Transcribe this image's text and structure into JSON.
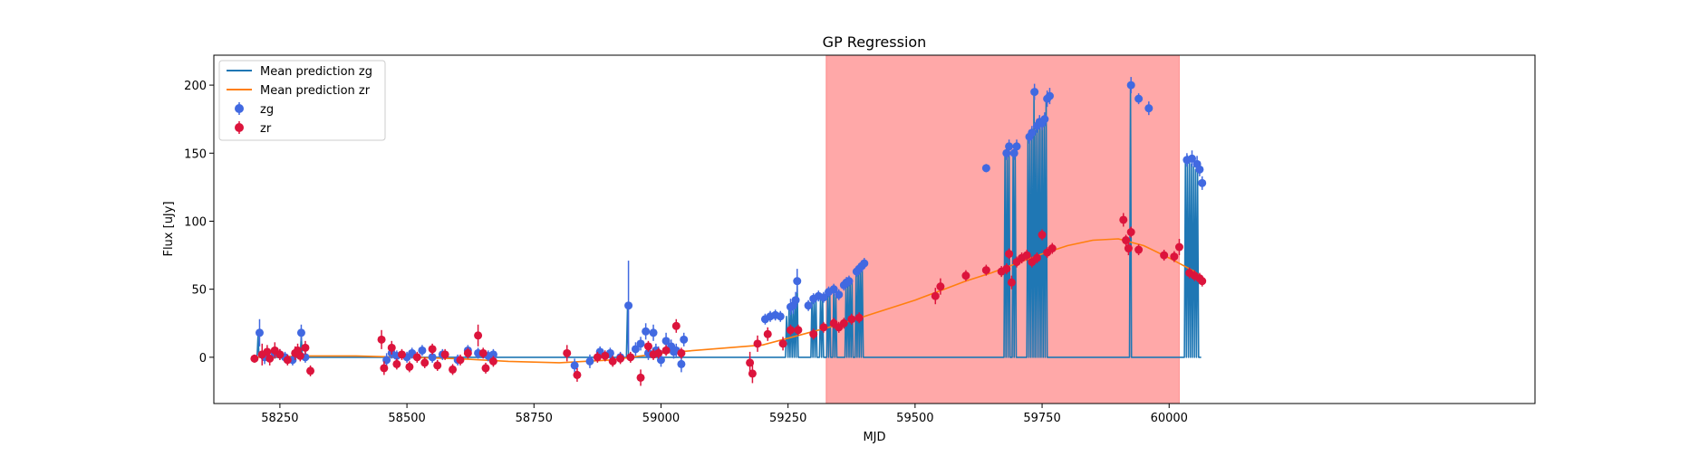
{
  "chart_data": {
    "type": "scatter",
    "title": "GP Regression",
    "xlabel": "MJD",
    "ylabel": "Flux [uJy]",
    "xlim": [
      58120,
      60720
    ],
    "ylim": [
      -34,
      222
    ],
    "xticks": [
      58250,
      58500,
      58750,
      59000,
      59250,
      59500,
      59750,
      60000
    ],
    "yticks": [
      0,
      50,
      100,
      150,
      200
    ],
    "grid": false,
    "legend_position": "top-left",
    "highlight_span": {
      "x0": 59325,
      "x1": 60020,
      "color": "#ff0000",
      "alpha": 0.34
    },
    "series": [
      {
        "name": "Mean prediction zg",
        "kind": "line",
        "color": "#1f77b4",
        "x": [
          58205,
          58207,
          58209,
          58211,
          58213,
          58230,
          58240,
          58260,
          58290,
          58292,
          58294,
          58296,
          58298,
          58320,
          58450,
          58600,
          58800,
          58932,
          58934,
          58936,
          58938,
          58940,
          59100,
          59245,
          59247,
          59250,
          59252,
          59254,
          59256,
          59258,
          59260,
          59262,
          59264,
          59266,
          59268,
          59270,
          59275,
          59280,
          59290,
          59295,
          59297,
          59299,
          59301,
          59303,
          59305,
          59307,
          59312,
          59314,
          59316,
          59318,
          59320,
          59326,
          59328,
          59330,
          59332,
          59334,
          59338,
          59340,
          59342,
          59344,
          59346,
          59350,
          59362,
          59364,
          59366,
          59368,
          59370,
          59372,
          59374,
          59376,
          59378,
          59380,
          59382,
          59384,
          59386,
          59388,
          59390,
          59392,
          59394,
          59396,
          59398,
          59400,
          59675,
          59677,
          59679,
          59681,
          59683,
          59685,
          59687,
          59689,
          59691,
          59693,
          59695,
          59697,
          59699,
          59720,
          59722,
          59724,
          59726,
          59728,
          59730,
          59732,
          59734,
          59736,
          59738,
          59740,
          59742,
          59744,
          59746,
          59748,
          59750,
          59752,
          59754,
          59756,
          59758,
          59760,
          59922,
          59924,
          59926,
          59928,
          59930,
          60030,
          60032,
          60034,
          60036,
          60038,
          60040,
          60042,
          60044,
          60046,
          60048,
          60050,
          60052,
          60054,
          60056,
          60058,
          60060,
          60063
        ],
        "y": [
          0,
          16,
          0,
          0,
          0,
          0,
          0,
          0,
          0,
          16,
          0,
          0,
          0,
          0,
          0,
          0,
          0,
          0,
          36,
          0,
          0,
          0,
          0,
          0,
          30,
          0,
          36,
          0,
          38,
          0,
          40,
          0,
          42,
          0,
          54,
          0,
          0,
          0,
          0,
          0,
          44,
          0,
          42,
          0,
          44,
          0,
          0,
          46,
          0,
          46,
          0,
          0,
          48,
          0,
          50,
          0,
          0,
          50,
          0,
          48,
          0,
          0,
          0,
          52,
          0,
          54,
          0,
          56,
          0,
          56,
          0,
          0,
          0,
          62,
          0,
          66,
          0,
          68,
          0,
          70,
          0,
          0,
          0,
          148,
          0,
          152,
          0,
          156,
          0,
          0,
          0,
          152,
          0,
          156,
          0,
          0,
          162,
          0,
          165,
          0,
          168,
          0,
          192,
          0,
          172,
          0,
          175,
          0,
          172,
          0,
          175,
          0,
          170,
          0,
          192,
          0,
          0,
          200,
          0,
          0,
          0,
          0,
          145,
          0,
          148,
          0,
          144,
          0,
          142,
          0,
          140,
          0,
          138,
          0,
          138,
          0,
          0,
          0
        ]
      },
      {
        "name": "Mean prediction zr",
        "kind": "line",
        "color": "#ff7f0e",
        "x": [
          58200,
          58300,
          58400,
          58500,
          58600,
          58700,
          58800,
          58900,
          59000,
          59100,
          59200,
          59250,
          59300,
          59350,
          59400,
          59450,
          59500,
          59550,
          59600,
          59650,
          59700,
          59750,
          59800,
          59850,
          59900,
          59950,
          60000,
          60050,
          60060
        ],
        "y": [
          0,
          1,
          1,
          0,
          -1,
          -3,
          -4,
          -2,
          3,
          6,
          9,
          14,
          19,
          24,
          30,
          36,
          42,
          49,
          56,
          62,
          69,
          76,
          82,
          86,
          87,
          82,
          73,
          63,
          60
        ]
      },
      {
        "name": "zg",
        "kind": "errorbar",
        "color": "#4169e1",
        "x": [
          58210,
          58220,
          58240,
          58250,
          58260,
          58275,
          58292,
          58300,
          58460,
          58470,
          58480,
          58500,
          58510,
          58530,
          58550,
          58570,
          58600,
          58620,
          58640,
          58660,
          58670,
          58830,
          58860,
          58880,
          58900,
          58920,
          58936,
          58950,
          58960,
          58970,
          58975,
          58985,
          58990,
          58995,
          59000,
          59010,
          59020,
          59025,
          59030,
          59040,
          59045,
          59205,
          59215,
          59225,
          59235,
          59255,
          59260,
          59265,
          59268,
          59290,
          59300,
          59310,
          59320,
          59330,
          59340,
          59350,
          59360,
          59365,
          59370,
          59385,
          59390,
          59395,
          59400,
          59640,
          59680,
          59685,
          59695,
          59700,
          59725,
          59730,
          59735,
          59740,
          59745,
          59750,
          59755,
          59760,
          59765,
          59925,
          59940,
          59960,
          60035,
          60045,
          60055,
          60060,
          60065
        ],
        "y": [
          18,
          0,
          3,
          2,
          0,
          -2,
          18,
          0,
          -2,
          3,
          1,
          0,
          3,
          5,
          0,
          2,
          -2,
          5,
          3,
          1,
          2,
          -6,
          -3,
          4,
          3,
          0,
          38,
          6,
          10,
          19,
          3,
          18,
          5,
          3,
          -2,
          12,
          8,
          4,
          5,
          -5,
          13,
          28,
          30,
          31,
          30,
          37,
          38,
          42,
          56,
          38,
          43,
          45,
          44,
          48,
          50,
          46,
          53,
          55,
          56,
          63,
          65,
          67,
          69,
          139,
          150,
          155,
          150,
          155,
          162,
          165,
          195,
          170,
          173,
          172,
          175,
          190,
          192,
          200,
          190,
          183,
          145,
          146,
          142,
          138,
          128
        ],
        "yerr": [
          10,
          5,
          4,
          4,
          4,
          4,
          6,
          4,
          5,
          4,
          4,
          4,
          4,
          4,
          4,
          4,
          4,
          4,
          4,
          4,
          4,
          5,
          5,
          4,
          4,
          4,
          33,
          5,
          5,
          6,
          5,
          6,
          5,
          5,
          5,
          6,
          5,
          5,
          5,
          6,
          5,
          4,
          4,
          4,
          4,
          6,
          6,
          6,
          9,
          4,
          4,
          4,
          4,
          4,
          4,
          4,
          4,
          4,
          4,
          4,
          4,
          4,
          4,
          3,
          5,
          5,
          5,
          5,
          5,
          5,
          6,
          5,
          5,
          5,
          5,
          6,
          6,
          6,
          4,
          5,
          5,
          6,
          6,
          5,
          5
        ]
      },
      {
        "name": "zr",
        "kind": "errorbar",
        "color": "#dc143c",
        "x": [
          58200,
          58215,
          58225,
          58230,
          58240,
          58250,
          58265,
          58280,
          58285,
          58290,
          58300,
          58310,
          58450,
          58455,
          58470,
          58480,
          58490,
          58505,
          58520,
          58535,
          58550,
          58560,
          58575,
          58590,
          58605,
          58620,
          58640,
          58650,
          58655,
          58670,
          58815,
          58835,
          58875,
          58890,
          58905,
          58920,
          58940,
          58960,
          58975,
          58985,
          58995,
          59010,
          59030,
          59040,
          59175,
          59180,
          59190,
          59210,
          59240,
          59255,
          59270,
          59300,
          59320,
          59340,
          59350,
          59360,
          59375,
          59390,
          59540,
          59550,
          59600,
          59640,
          59670,
          59680,
          59685,
          59690,
          59700,
          59710,
          59720,
          59730,
          59740,
          59750,
          59760,
          59770,
          59910,
          59915,
          59920,
          59925,
          59940,
          59990,
          60010,
          60020,
          60040,
          60050,
          60060,
          60065
        ],
        "y": [
          -1,
          2,
          4,
          -1,
          5,
          2,
          -2,
          3,
          5,
          1,
          7,
          -10,
          13,
          -8,
          7,
          -5,
          2,
          -7,
          0,
          -4,
          6,
          -6,
          2,
          -9,
          -2,
          3,
          16,
          3,
          -8,
          -3,
          3,
          -13,
          0,
          1,
          -3,
          -1,
          0,
          -15,
          8,
          2,
          3,
          5,
          23,
          3,
          -4,
          -12,
          10,
          17,
          10,
          20,
          20,
          17,
          22,
          25,
          22,
          25,
          28,
          29,
          45,
          52,
          60,
          64,
          63,
          65,
          76,
          55,
          70,
          73,
          75,
          70,
          73,
          90,
          77,
          80,
          101,
          86,
          80,
          92,
          79,
          75,
          74,
          81,
          62,
          60,
          58,
          56
        ],
        "yerr": [
          3,
          8,
          5,
          5,
          6,
          4,
          4,
          5,
          5,
          4,
          5,
          4,
          7,
          5,
          5,
          4,
          4,
          4,
          4,
          4,
          4,
          4,
          4,
          4,
          4,
          4,
          8,
          4,
          4,
          4,
          6,
          5,
          4,
          4,
          4,
          4,
          4,
          6,
          4,
          4,
          4,
          4,
          5,
          4,
          8,
          7,
          6,
          5,
          5,
          4,
          4,
          4,
          4,
          4,
          4,
          4,
          4,
          4,
          6,
          6,
          4,
          4,
          4,
          4,
          4,
          5,
          4,
          4,
          4,
          4,
          4,
          4,
          4,
          4,
          5,
          4,
          5,
          4,
          4,
          4,
          4,
          6,
          4,
          4,
          4,
          4
        ]
      }
    ]
  }
}
